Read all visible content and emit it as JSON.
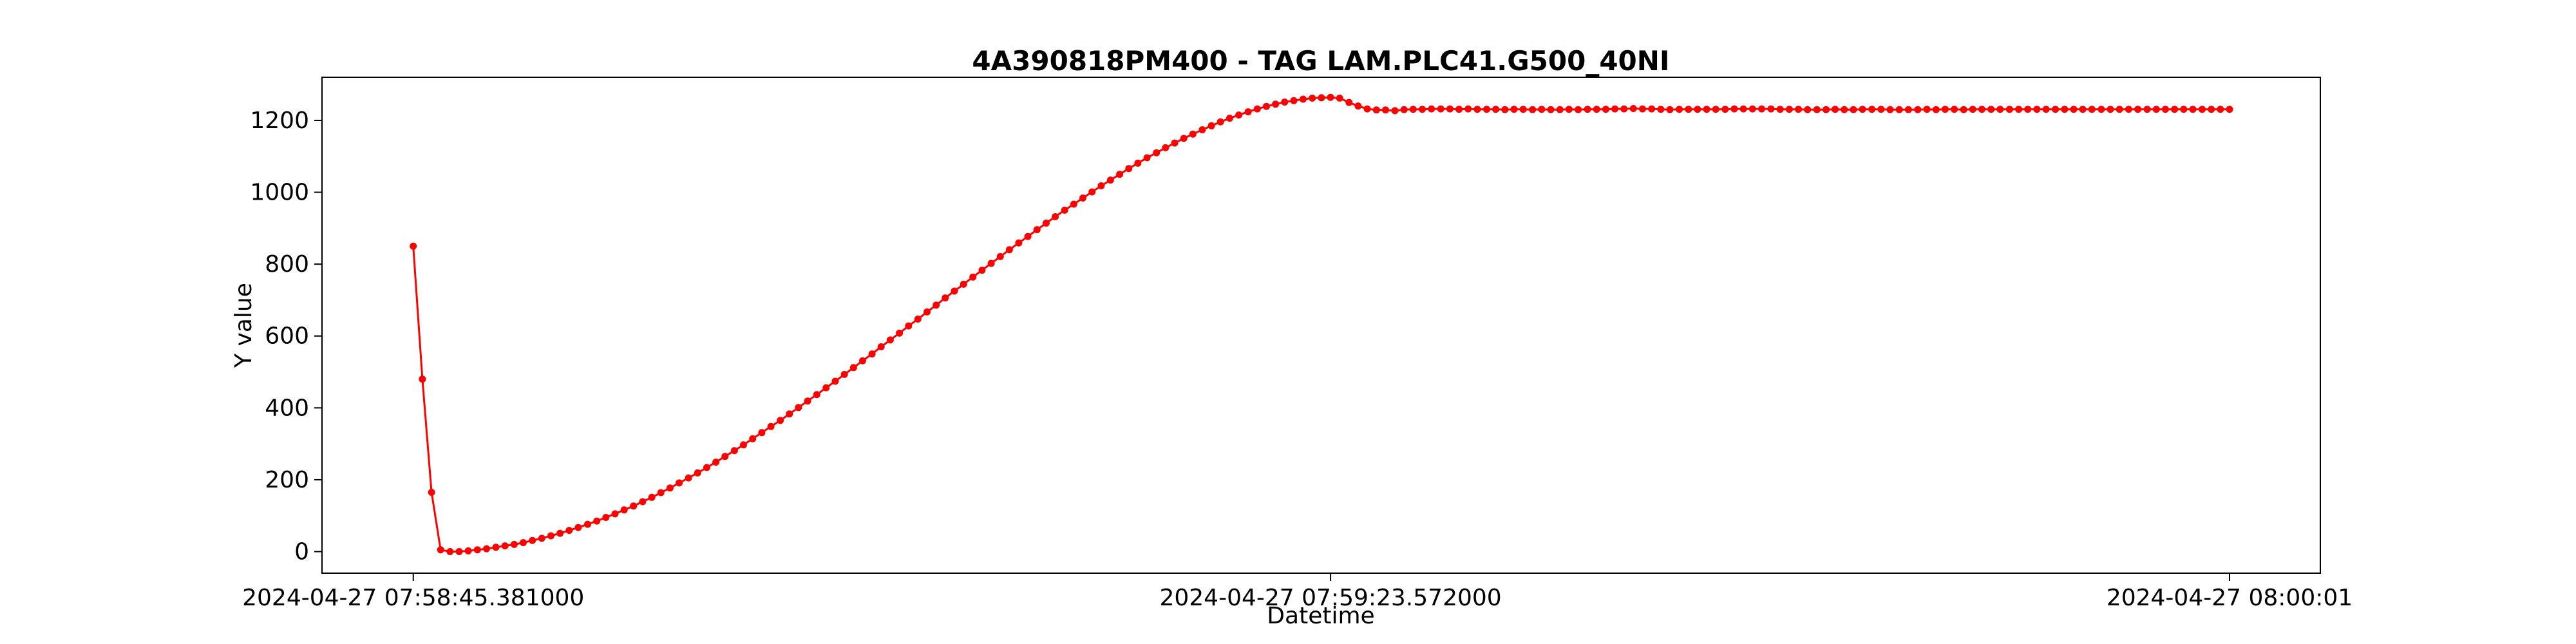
{
  "chart_data": {
    "type": "line",
    "title": "4A390818PM400 - TAG LAM.PLC41.G500_40NI",
    "xlabel": "Datetime",
    "ylabel": "Y value",
    "x_start": "2024-04-27 07:58:45.381000",
    "x_end": "2024-04-27 08:00:01",
    "x_ticks": [
      {
        "t": 0,
        "label": "2024-04-27 07:58:45.381000"
      },
      {
        "t": 38.191,
        "label": "2024-04-27 07:59:23.572000"
      },
      {
        "t": 75.619,
        "label": "2024-04-27 08:00:01"
      }
    ],
    "y_ticks": [
      0,
      200,
      400,
      600,
      800,
      1000,
      1200
    ],
    "ylim": [
      -60,
      1320
    ],
    "xlim": [
      -3.8,
      79.4
    ],
    "grid": false,
    "series": [
      {
        "color": "#ff0000",
        "marker": "circle",
        "points": [
          [
            0,
            850
          ],
          [
            0.38,
            480
          ],
          [
            0.76,
            165
          ],
          [
            1.14,
            5
          ],
          [
            1.53,
            0
          ],
          [
            1.91,
            0
          ],
          [
            2.29,
            2
          ],
          [
            2.67,
            5
          ],
          [
            3.05,
            8
          ],
          [
            3.44,
            12
          ],
          [
            3.82,
            16
          ],
          [
            4.2,
            20
          ],
          [
            4.58,
            25
          ],
          [
            4.96,
            31
          ],
          [
            5.35,
            37
          ],
          [
            5.73,
            44
          ],
          [
            6.11,
            51
          ],
          [
            6.49,
            59
          ],
          [
            6.87,
            67
          ],
          [
            7.26,
            76
          ],
          [
            7.64,
            85
          ],
          [
            8.02,
            95
          ],
          [
            8.4,
            105
          ],
          [
            8.78,
            116
          ],
          [
            9.17,
            127
          ],
          [
            9.55,
            139
          ],
          [
            9.93,
            151
          ],
          [
            10.31,
            164
          ],
          [
            10.69,
            177
          ],
          [
            11.07,
            191
          ],
          [
            11.46,
            205
          ],
          [
            11.84,
            219
          ],
          [
            12.22,
            234
          ],
          [
            12.6,
            249
          ],
          [
            12.98,
            265
          ],
          [
            13.37,
            281
          ],
          [
            13.75,
            297
          ],
          [
            14.13,
            314
          ],
          [
            14.51,
            331
          ],
          [
            14.89,
            348
          ],
          [
            15.28,
            365
          ],
          [
            15.66,
            383
          ],
          [
            16.04,
            401
          ],
          [
            16.42,
            419
          ],
          [
            16.8,
            437
          ],
          [
            17.19,
            456
          ],
          [
            17.57,
            474
          ],
          [
            17.95,
            493
          ],
          [
            18.33,
            512
          ],
          [
            18.71,
            531
          ],
          [
            19.1,
            550
          ],
          [
            19.48,
            570
          ],
          [
            19.86,
            589
          ],
          [
            20.24,
            608
          ],
          [
            20.62,
            628
          ],
          [
            21.01,
            647
          ],
          [
            21.39,
            667
          ],
          [
            21.77,
            686
          ],
          [
            22.15,
            706
          ],
          [
            22.53,
            725
          ],
          [
            22.91,
            744
          ],
          [
            23.3,
            764
          ],
          [
            23.68,
            783
          ],
          [
            24.06,
            802
          ],
          [
            24.44,
            821
          ],
          [
            24.82,
            840
          ],
          [
            25.21,
            859
          ],
          [
            25.59,
            877
          ],
          [
            25.97,
            896
          ],
          [
            26.35,
            914
          ],
          [
            26.73,
            932
          ],
          [
            27.12,
            950
          ],
          [
            27.5,
            967
          ],
          [
            27.88,
            984
          ],
          [
            28.26,
            1001
          ],
          [
            28.64,
            1018
          ],
          [
            29.03,
            1034
          ],
          [
            29.41,
            1050
          ],
          [
            29.79,
            1066
          ],
          [
            30.17,
            1081
          ],
          [
            30.55,
            1096
          ],
          [
            30.94,
            1110
          ],
          [
            31.32,
            1124
          ],
          [
            31.7,
            1137
          ],
          [
            32.08,
            1150
          ],
          [
            32.46,
            1162
          ],
          [
            32.85,
            1174
          ],
          [
            33.23,
            1185
          ],
          [
            33.61,
            1196
          ],
          [
            33.99,
            1206
          ],
          [
            34.37,
            1215
          ],
          [
            34.76,
            1224
          ],
          [
            35.14,
            1232
          ],
          [
            35.52,
            1239
          ],
          [
            35.9,
            1245
          ],
          [
            36.28,
            1251
          ],
          [
            36.66,
            1255
          ],
          [
            37.05,
            1259
          ],
          [
            37.43,
            1262
          ],
          [
            37.81,
            1263
          ],
          [
            38.19,
            1264
          ],
          [
            38.57,
            1262
          ],
          [
            38.96,
            1250
          ],
          [
            39.34,
            1240
          ],
          [
            39.72,
            1232
          ],
          [
            40.1,
            1229
          ],
          [
            40.48,
            1229
          ],
          [
            40.87,
            1227
          ],
          [
            41.25,
            1230
          ],
          [
            41.63,
            1231
          ],
          [
            42.01,
            1231
          ],
          [
            42.39,
            1232
          ],
          [
            42.78,
            1232
          ],
          [
            43.16,
            1232
          ],
          [
            43.54,
            1231
          ],
          [
            43.92,
            1232
          ],
          [
            44.3,
            1231
          ],
          [
            44.69,
            1231
          ],
          [
            45.07,
            1231
          ],
          [
            45.45,
            1230
          ],
          [
            45.83,
            1231
          ],
          [
            46.21,
            1231
          ],
          [
            46.6,
            1230
          ],
          [
            46.98,
            1231
          ],
          [
            47.36,
            1230
          ],
          [
            47.74,
            1230
          ],
          [
            48.12,
            1231
          ],
          [
            48.5,
            1230
          ],
          [
            48.89,
            1231
          ],
          [
            49.27,
            1231
          ],
          [
            49.65,
            1231
          ],
          [
            50.03,
            1232
          ],
          [
            50.41,
            1232
          ],
          [
            50.8,
            1233
          ],
          [
            51.18,
            1232
          ],
          [
            51.56,
            1232
          ],
          [
            51.94,
            1231
          ],
          [
            52.32,
            1230
          ],
          [
            52.71,
            1231
          ],
          [
            53.09,
            1231
          ],
          [
            53.47,
            1231
          ],
          [
            53.85,
            1231
          ],
          [
            54.23,
            1231
          ],
          [
            54.62,
            1231
          ],
          [
            55,
            1232
          ],
          [
            55.38,
            1232
          ],
          [
            55.76,
            1232
          ],
          [
            56.14,
            1232
          ],
          [
            56.53,
            1232
          ],
          [
            56.91,
            1231
          ],
          [
            57.29,
            1231
          ],
          [
            57.67,
            1231
          ],
          [
            58.05,
            1230
          ],
          [
            58.44,
            1230
          ],
          [
            58.82,
            1230
          ],
          [
            59.2,
            1231
          ],
          [
            59.58,
            1230
          ],
          [
            59.96,
            1230
          ],
          [
            60.34,
            1231
          ],
          [
            60.73,
            1231
          ],
          [
            61.11,
            1231
          ],
          [
            61.49,
            1230
          ],
          [
            61.87,
            1230
          ],
          [
            62.25,
            1230
          ],
          [
            62.64,
            1230
          ],
          [
            63.02,
            1231
          ],
          [
            63.4,
            1230
          ],
          [
            63.78,
            1231
          ],
          [
            64.16,
            1231
          ],
          [
            64.55,
            1230
          ],
          [
            64.93,
            1231
          ],
          [
            65.31,
            1231
          ],
          [
            65.69,
            1231
          ],
          [
            66.07,
            1231
          ],
          [
            66.46,
            1231
          ],
          [
            66.84,
            1231
          ],
          [
            67.22,
            1231
          ],
          [
            67.6,
            1231
          ],
          [
            67.98,
            1231
          ],
          [
            68.37,
            1231
          ],
          [
            68.75,
            1231
          ],
          [
            69.13,
            1231
          ],
          [
            69.51,
            1231
          ],
          [
            69.89,
            1231
          ],
          [
            70.28,
            1231
          ],
          [
            70.66,
            1231
          ],
          [
            71.04,
            1231
          ],
          [
            71.42,
            1231
          ],
          [
            71.8,
            1231
          ],
          [
            72.19,
            1231
          ],
          [
            72.57,
            1231
          ],
          [
            72.95,
            1231
          ],
          [
            73.33,
            1231
          ],
          [
            73.71,
            1231
          ],
          [
            74.09,
            1231
          ],
          [
            74.48,
            1231
          ],
          [
            74.86,
            1231
          ],
          [
            75.24,
            1231
          ],
          [
            75.62,
            1231
          ]
        ]
      }
    ]
  }
}
